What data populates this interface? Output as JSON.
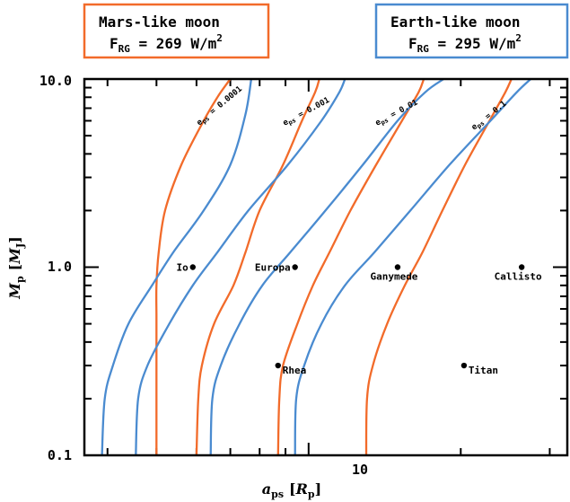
{
  "chart_data": {
    "type": "line",
    "xlabel": "a",
    "xlabel_sub": "ps",
    "xlabel_unit_open": "[",
    "xlabel_unit": "R",
    "xlabel_unit_sub": "p",
    "xlabel_unit_close": "]",
    "ylabel": "M",
    "ylabel_sub": "p",
    "ylabel_unit_open": "[",
    "ylabel_unit": "M",
    "ylabel_unit_sub": "J",
    "ylabel_unit_close": "]",
    "xscale": "log",
    "yscale": "log",
    "xlim": [
      3.6,
      32.5
    ],
    "ylim": [
      0.1,
      10.0
    ],
    "x_ticks": [
      {
        "value": 10,
        "label": "10"
      }
    ],
    "y_ticks": [
      {
        "value": 0.1,
        "label": "0.1"
      },
      {
        "value": 1.0,
        "label": "1.0"
      },
      {
        "value": 10.0,
        "label": "10.0"
      }
    ],
    "legend": [
      {
        "line1": "Mars-like moon",
        "line2_pre": "F",
        "line2_sub": "RG",
        "line2_post": " = 269 W/m",
        "line2_sup": "2",
        "color": "#f26b2a",
        "position": "top-left"
      },
      {
        "line1": "Earth-like moon",
        "line2_pre": "F",
        "line2_sub": "RG",
        "line2_post": " = 295 W/m",
        "line2_sup": "2",
        "color": "#4a8bd0",
        "position": "top-right"
      }
    ],
    "curve_labels": [
      {
        "pre": "e",
        "sub": "ps",
        "post": " = 0.0001"
      },
      {
        "pre": "e",
        "sub": "ps",
        "post": " = 0.001"
      },
      {
        "pre": "e",
        "sub": "ps",
        "post": " = 0.01"
      },
      {
        "pre": "e",
        "sub": "ps",
        "post": " = 0.1"
      }
    ],
    "series": [
      {
        "group": "Mars-like moon",
        "curve": 0,
        "color": "#f26b2a",
        "x": [
          5.0,
          5.0,
          5.0,
          5.0,
          5.0,
          5.0,
          5.05,
          5.2,
          5.6,
          6.2,
          6.6,
          6.9,
          7.0
        ],
        "y": [
          0.1,
          0.2,
          0.3,
          0.4,
          0.55,
          0.8,
          1.2,
          2.0,
          3.5,
          6.0,
          8.0,
          9.5,
          10.0
        ]
      },
      {
        "group": "Mars-like moon",
        "curve": 1,
        "color": "#f26b2a",
        "x": [
          6.0,
          6.05,
          6.15,
          6.5,
          7.1,
          7.5,
          8.0,
          8.9,
          9.7,
          10.3,
          10.5
        ],
        "y": [
          0.1,
          0.2,
          0.3,
          0.5,
          0.8,
          1.2,
          2.0,
          3.5,
          6.0,
          8.5,
          10.0
        ]
      },
      {
        "group": "Mars-like moon",
        "curve": 2,
        "color": "#f26b2a",
        "x": [
          8.7,
          8.75,
          8.9,
          9.5,
          10.2,
          11.0,
          12.1,
          13.6,
          15.3,
          16.5,
          16.9
        ],
        "y": [
          0.1,
          0.2,
          0.3,
          0.5,
          0.8,
          1.2,
          2.0,
          3.5,
          6.0,
          8.5,
          10.0
        ]
      },
      {
        "group": "Mars-like moon",
        "curve": 3,
        "color": "#f26b2a",
        "x": [
          13.0,
          13.05,
          13.4,
          14.3,
          15.5,
          16.8,
          18.4,
          20.4,
          22.8,
          24.5,
          25.2
        ],
        "y": [
          0.1,
          0.2,
          0.3,
          0.5,
          0.8,
          1.2,
          2.0,
          3.5,
          6.0,
          8.5,
          10.0
        ]
      },
      {
        "group": "Earth-like moon",
        "curve": 0,
        "color": "#4a8bd0",
        "x": [
          3.9,
          3.95,
          4.1,
          4.4,
          4.9,
          5.4,
          6.2,
          7.0,
          7.5,
          7.7
        ],
        "y": [
          0.1,
          0.2,
          0.3,
          0.5,
          0.8,
          1.2,
          2.0,
          3.5,
          6.5,
          10.0
        ]
      },
      {
        "group": "Earth-like moon",
        "curve": 1,
        "color": "#4a8bd0",
        "x": [
          4.55,
          4.6,
          4.8,
          5.3,
          5.9,
          6.6,
          7.6,
          9.1,
          10.6,
          11.5,
          11.8
        ],
        "y": [
          0.1,
          0.2,
          0.3,
          0.5,
          0.8,
          1.2,
          2.0,
          3.5,
          6.0,
          8.5,
          10.0
        ]
      },
      {
        "group": "Earth-like moon",
        "curve": 2,
        "color": "#4a8bd0",
        "x": [
          6.4,
          6.45,
          6.7,
          7.3,
          8.1,
          9.2,
          10.8,
          12.8,
          15.0,
          17.0,
          18.5
        ],
        "y": [
          0.1,
          0.2,
          0.3,
          0.5,
          0.8,
          1.2,
          2.0,
          3.5,
          6.0,
          8.5,
          10.0
        ]
      },
      {
        "group": "Earth-like moon",
        "curve": 3,
        "color": "#4a8bd0",
        "x": [
          9.4,
          9.45,
          9.8,
          10.6,
          11.8,
          13.5,
          15.9,
          19.0,
          22.9,
          25.8,
          27.5
        ],
        "y": [
          0.1,
          0.2,
          0.3,
          0.5,
          0.8,
          1.2,
          2.0,
          3.5,
          6.0,
          8.5,
          10.0
        ]
      }
    ],
    "points": [
      {
        "name": "Io",
        "x": 5.9,
        "y": 1.0,
        "label_side": "left"
      },
      {
        "name": "Europa",
        "x": 9.4,
        "y": 1.0,
        "label_side": "left"
      },
      {
        "name": "Ganymede",
        "x": 15.0,
        "y": 1.0,
        "label_side": "below"
      },
      {
        "name": "Callisto",
        "x": 26.4,
        "y": 1.0,
        "label_side": "below"
      },
      {
        "name": "Rhea",
        "x": 8.7,
        "y": 0.3,
        "label_side": "right"
      },
      {
        "name": "Titan",
        "x": 20.3,
        "y": 0.3,
        "label_side": "right"
      }
    ]
  }
}
